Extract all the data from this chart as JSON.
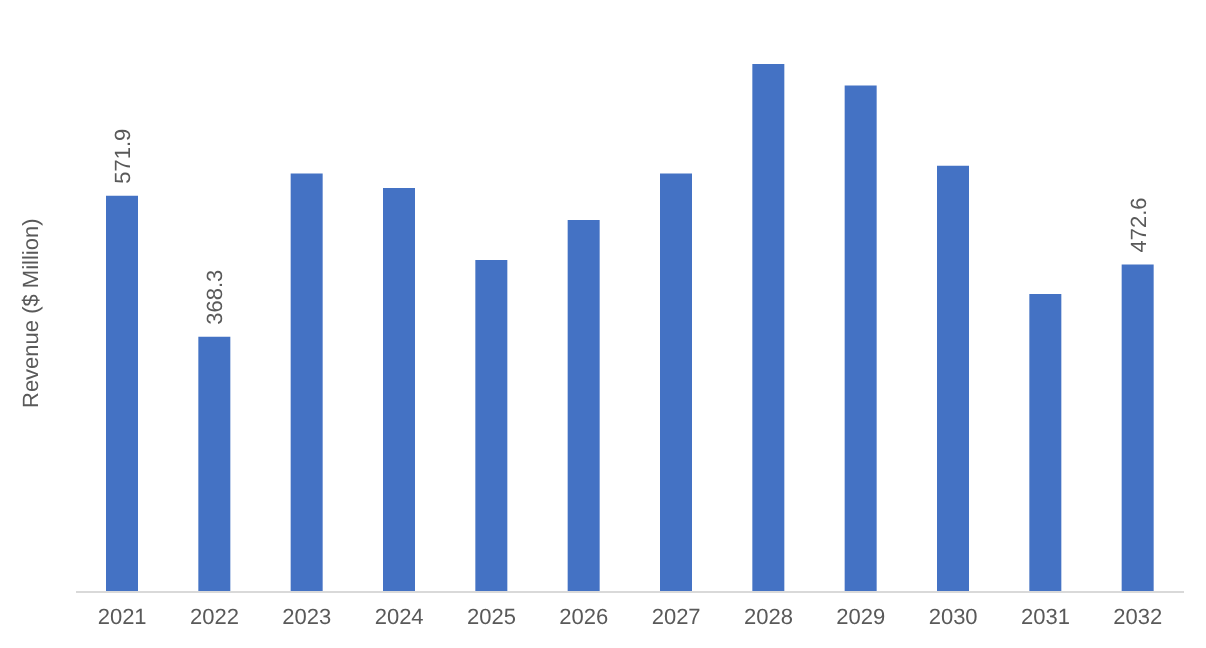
{
  "chart_data": {
    "type": "bar",
    "ylabel": "Revenue ($ Million)",
    "categories": [
      "2021",
      "2022",
      "2023",
      "2024",
      "2025",
      "2026",
      "2027",
      "2028",
      "2029",
      "2030",
      "2031",
      "2032"
    ],
    "values": [
      571.9,
      368.3,
      604,
      583,
      479,
      537,
      604,
      762,
      731,
      615,
      430,
      472.6
    ],
    "value_labels": [
      "571.9",
      "368.3",
      null,
      null,
      null,
      null,
      null,
      null,
      null,
      null,
      null,
      "472.6"
    ],
    "color": "#4472c4",
    "grid": false,
    "legend": false
  }
}
